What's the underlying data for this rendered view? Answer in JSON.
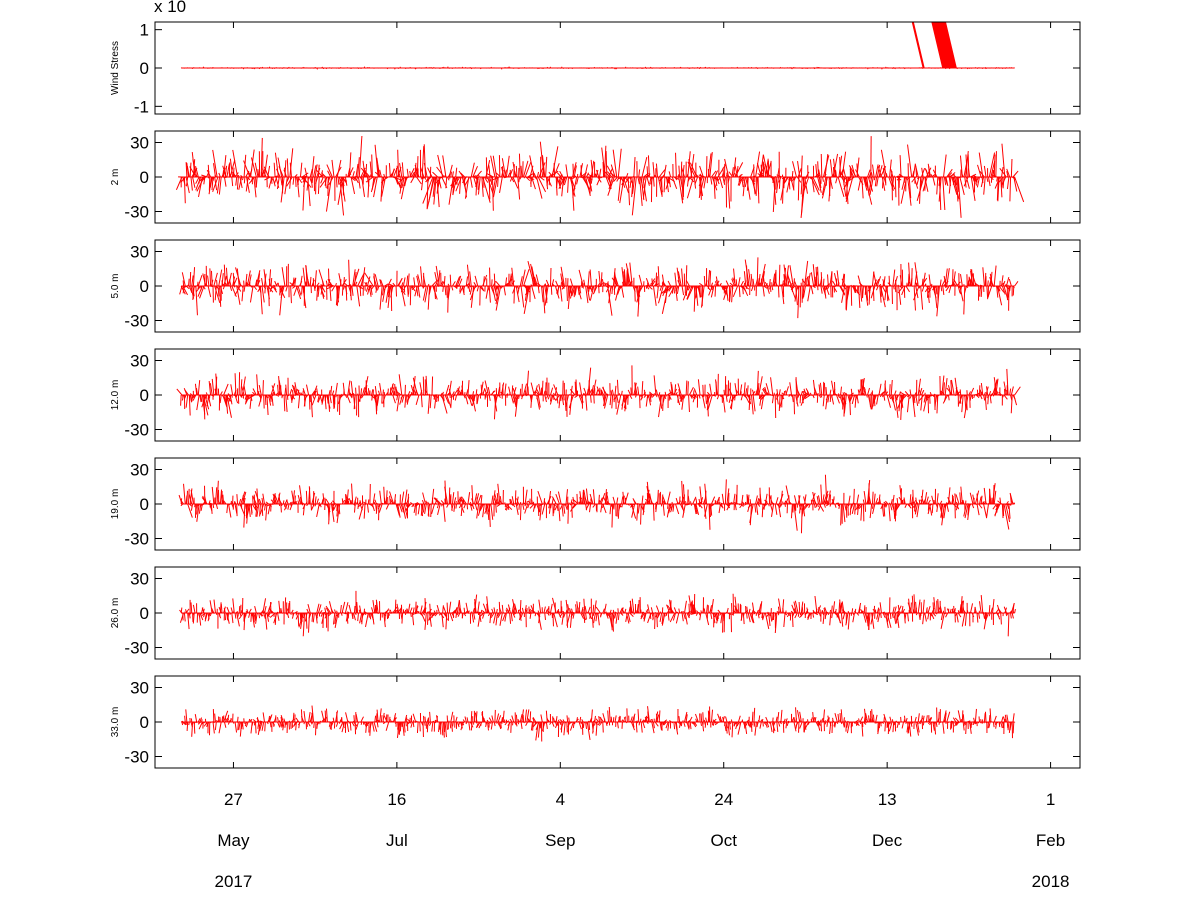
{
  "multiplier_label": "x 10",
  "chart_data": {
    "type": "stick-vector time series",
    "time_range": [
      "2017-05-11",
      "2018-01-21"
    ],
    "x_ticks": [
      {
        "day": "27",
        "month": "May",
        "year": "2017",
        "date": "2017-05-27"
      },
      {
        "day": "16",
        "month": "Jul",
        "year": "",
        "date": "2017-07-16"
      },
      {
        "day": "4",
        "month": "Sep",
        "year": "",
        "date": "2017-09-04"
      },
      {
        "day": "24",
        "month": "Oct",
        "year": "",
        "date": "2017-10-24"
      },
      {
        "day": "13",
        "month": "Dec",
        "year": "",
        "date": "2017-12-13"
      },
      {
        "day": "1",
        "month": "Feb",
        "year": "2018",
        "date": "2018-02-01"
      }
    ],
    "color": "#ff0000",
    "grid": false,
    "panels": [
      {
        "label": "Wind Stress",
        "ylim": [
          -1.2,
          1.2
        ],
        "yticks": [
          {
            "value": 1,
            "label": "1"
          },
          {
            "value": 0,
            "label": "0"
          },
          {
            "value": -1,
            "label": "-1"
          }
        ],
        "typical_magnitude": 0.02,
        "events": [
          {
            "date": "2017-12-24",
            "u": -1.3,
            "v": 5.5
          },
          {
            "date": "2017-12-30",
            "u": -1.3,
            "v": 5.5
          },
          {
            "date": "2018-01-01",
            "u": -1.3,
            "v": 5.5
          }
        ]
      },
      {
        "label": "2 m",
        "ylim": [
          -40,
          40
        ],
        "yticks": [
          {
            "value": 30,
            "label": "30"
          },
          {
            "value": 0,
            "label": "0"
          },
          {
            "value": -30,
            "label": "-30"
          }
        ],
        "typical_magnitude": 22
      },
      {
        "label": "5.0 m",
        "ylim": [
          -40,
          40
        ],
        "yticks": [
          {
            "value": 30,
            "label": "30"
          },
          {
            "value": 0,
            "label": "0"
          },
          {
            "value": -30,
            "label": "-30"
          }
        ],
        "typical_magnitude": 17
      },
      {
        "label": "12.0 m",
        "ylim": [
          -40,
          40
        ],
        "yticks": [
          {
            "value": 30,
            "label": "30"
          },
          {
            "value": 0,
            "label": "0"
          },
          {
            "value": -30,
            "label": "-30"
          }
        ],
        "typical_magnitude": 14
      },
      {
        "label": "19.0 m",
        "ylim": [
          -40,
          40
        ],
        "yticks": [
          {
            "value": 30,
            "label": "30"
          },
          {
            "value": 0,
            "label": "0"
          },
          {
            "value": -30,
            "label": "-30"
          }
        ],
        "typical_magnitude": 14
      },
      {
        "label": "26.0 m",
        "ylim": [
          -40,
          40
        ],
        "yticks": [
          {
            "value": 30,
            "label": "30"
          },
          {
            "value": 0,
            "label": "0"
          },
          {
            "value": -30,
            "label": "-30"
          }
        ],
        "typical_magnitude": 12
      },
      {
        "label": "33.0 m",
        "ylim": [
          -40,
          40
        ],
        "yticks": [
          {
            "value": 30,
            "label": "30"
          },
          {
            "value": 0,
            "label": "0"
          },
          {
            "value": -30,
            "label": "-30"
          }
        ],
        "typical_magnitude": 10
      }
    ]
  }
}
